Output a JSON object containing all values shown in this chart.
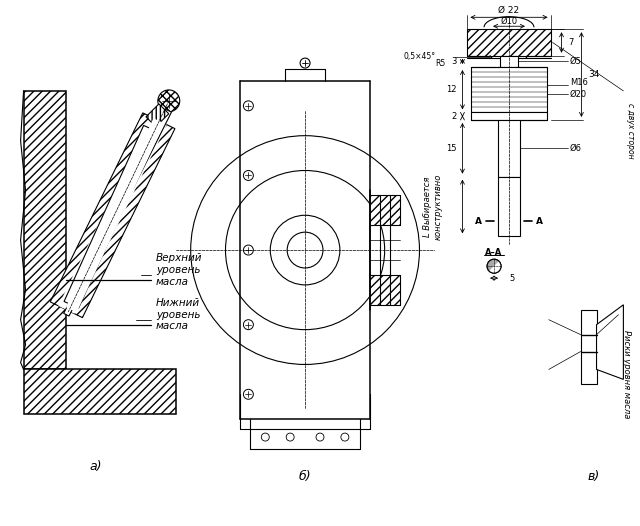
{
  "bg_color": "#ffffff",
  "labels": {
    "a": "а)",
    "b": "б)",
    "v": "в)",
    "verh": "Верхний\nуровень\nмасла",
    "nizh": "Нижний\nуровень\nмасла",
    "riski": "Риски уровня масла",
    "vib": "L Выбирается\nконструктивно",
    "d22": "Ø 22",
    "d10": "Ø10",
    "d5": "Ø5",
    "d6": "Ø6",
    "d20": "Ø20",
    "m16": "М16",
    "cham": "0,5×45°",
    "r": "R5",
    "s_dv": "с двух сторон",
    "dim7": "7",
    "dim34": "34",
    "dim3": "3",
    "dim12": "12",
    "dim2": "2",
    "dim15": "15",
    "dim5": "5",
    "A_A": "А–А",
    "A": "А"
  },
  "figsize": [
    6.4,
    5.26
  ],
  "dpi": 100
}
